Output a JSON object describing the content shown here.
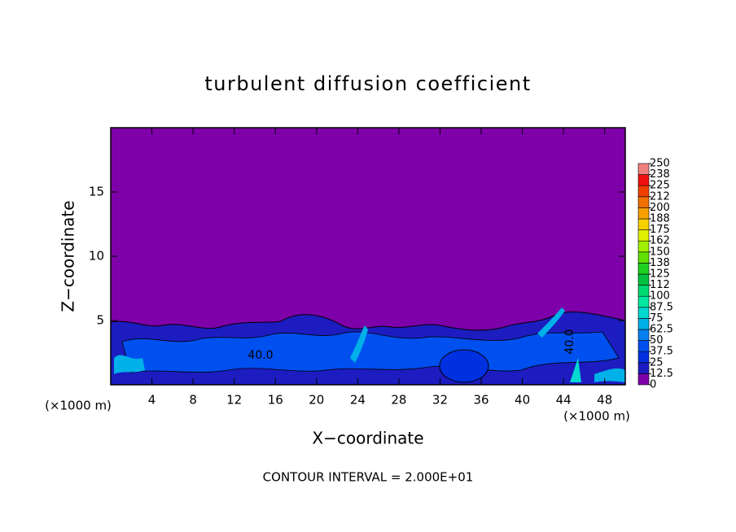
{
  "chart_data": {
    "type": "contour",
    "title": "turbulent diffusion coefficient",
    "x_label": "X−coordinate",
    "y_label": "Z−coordinate",
    "x_unit_label_left": "(×1000 m)",
    "x_unit_label_right": "(×1000 m)",
    "footer": "CONTOUR INTERVAL = 2.000E+01",
    "xlim": [
      0,
      50
    ],
    "xticks": [
      4,
      8,
      12,
      16,
      20,
      24,
      28,
      32,
      36,
      40,
      44,
      48
    ],
    "ylim": [
      0,
      20
    ],
    "yticks": [
      5,
      10,
      15
    ],
    "contour_labels": [
      "40.0",
      "40.0"
    ],
    "colorbar": {
      "ticks": [
        0,
        12.5,
        25,
        37.5,
        50,
        62.5,
        75,
        87.5,
        100,
        {
          "value": 112.5,
          "label": "112"
        },
        125,
        {
          "value": 137.5,
          "label": "138"
        },
        150,
        {
          "value": 162.5,
          "label": "162"
        },
        175,
        {
          "value": 187.5,
          "label": "188"
        },
        200,
        {
          "value": 212.5,
          "label": "212"
        },
        225,
        {
          "value": 237.5,
          "label": "238"
        },
        250
      ],
      "colors": [
        "#7e00a8",
        "#1c1cc0",
        "#0030e0",
        "#0050f0",
        "#0080f0",
        "#00b0e8",
        "#00d8d0",
        "#00e8a0",
        "#00d870",
        "#00c040",
        "#20d020",
        "#60e000",
        "#a0f000",
        "#e0f000",
        "#f8d000",
        "#f8a000",
        "#f07000",
        "#f04000",
        "#f01010",
        "#f08080"
      ]
    }
  }
}
